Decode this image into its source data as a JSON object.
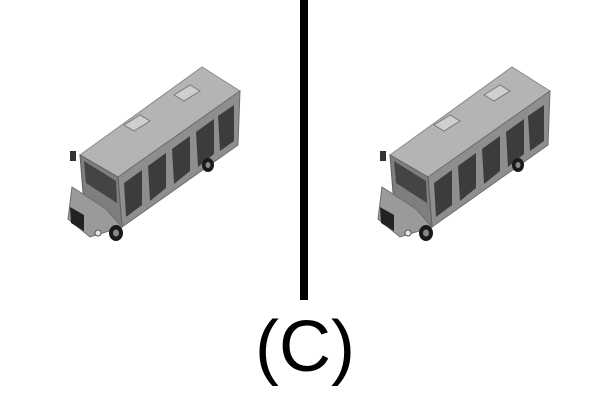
{
  "figure": {
    "caption": "(C)",
    "divider_color": "#000000",
    "panels": [
      {
        "name": "left-view",
        "object": "bus-icon"
      },
      {
        "name": "right-view",
        "object": "bus-icon"
      }
    ],
    "colors": {
      "roof": "#a8a8a8",
      "body": "#8c8c8c",
      "window": "#3a3a3a",
      "wheel": "#1a1a1a"
    }
  }
}
